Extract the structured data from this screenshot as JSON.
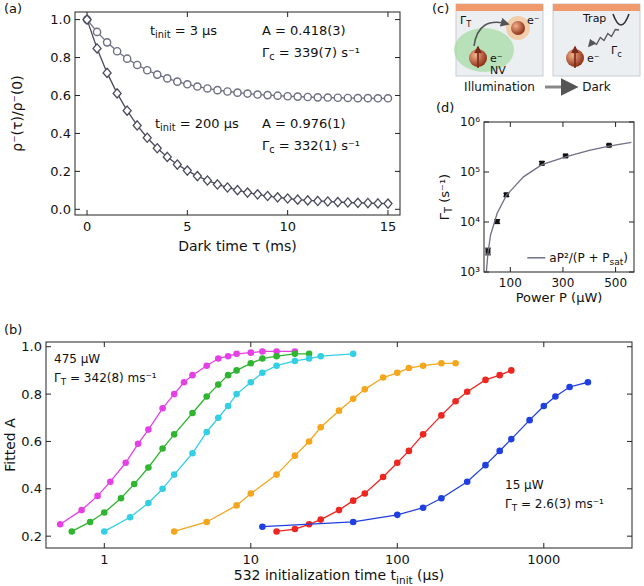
{
  "chart_data": [
    {
      "type": "line",
      "panel_label": "(a)",
      "x_label": "Dark time τ (ms)",
      "y_label": "ρ⁻(τ)/ρ⁻(0)",
      "x": [
        0,
        0.5,
        1,
        1.5,
        2,
        2.5,
        3,
        3.5,
        4,
        4.5,
        5,
        5.5,
        6,
        6.5,
        7,
        7.5,
        8,
        8.5,
        9,
        9.5,
        10,
        10.5,
        11,
        11.5,
        12,
        12.5,
        13,
        13.5,
        14,
        14.5,
        15
      ],
      "series": [
        {
          "color": "#6e6e84",
          "marker": "circle_open",
          "line_style": "solid",
          "values": [
            1.0,
            0.935,
            0.88,
            0.833,
            0.794,
            0.761,
            0.733,
            0.71,
            0.69,
            0.673,
            0.659,
            0.647,
            0.637,
            0.628,
            0.621,
            0.615,
            0.61,
            0.605,
            0.602,
            0.599,
            0.596,
            0.594,
            0.592,
            0.59,
            0.589,
            0.588,
            0.587,
            0.586,
            0.586,
            0.585,
            0.585
          ]
        },
        {
          "color": "#4a4a5e",
          "marker": "diamond_open",
          "line_style": "solid",
          "values": [
            1.0,
            0.848,
            0.719,
            0.611,
            0.52,
            0.442,
            0.377,
            0.322,
            0.276,
            0.236,
            0.204,
            0.175,
            0.152,
            0.131,
            0.115,
            0.101,
            0.088,
            0.079,
            0.07,
            0.063,
            0.057,
            0.051,
            0.047,
            0.044,
            0.041,
            0.038,
            0.036,
            0.034,
            0.033,
            0.031,
            0.03
          ]
        }
      ],
      "xlim": [
        -0.6,
        15.6
      ],
      "ylim": [
        -0.03,
        1.04
      ],
      "xticks": [
        0,
        5,
        10,
        15
      ],
      "yticks": [
        {
          "value": 0,
          "label": "0.0"
        },
        0.2,
        0.4,
        0.6,
        0.8,
        {
          "value": 1,
          "label": "1.0"
        }
      ],
      "annotations": [
        [
          "t",
          {
            "sub": "init"
          },
          " = 3 μs"
        ],
        "A = 0.418(3)",
        [
          "Γ",
          {
            "sub": "c"
          },
          " = 339(7) s⁻¹"
        ],
        [
          "t",
          {
            "sub": "init"
          },
          " = 200 μs"
        ],
        "A = 0.976(1)",
        [
          "Γ",
          {
            "sub": "c"
          },
          " = 332(1) s⁻¹"
        ]
      ]
    },
    {
      "type": "line",
      "panel_label": "(b)",
      "x_label": [
        "532 initialization time t",
        {
          "sub": "init"
        },
        " (μs)"
      ],
      "y_label": "Fitted A",
      "log": "x",
      "series": [
        {
          "color": "#e540e5",
          "marker": "circle",
          "line_style": "solid",
          "x": [
            0.5,
            0.7,
            0.9,
            1.1,
            1.4,
            1.7,
            2,
            2.5,
            3,
            3.5,
            4,
            5,
            6,
            7,
            8,
            10,
            12,
            15,
            20
          ],
          "values": [
            0.25,
            0.31,
            0.37,
            0.43,
            0.51,
            0.59,
            0.65,
            0.74,
            0.8,
            0.85,
            0.88,
            0.92,
            0.95,
            0.96,
            0.97,
            0.975,
            0.98,
            0.98,
            0.98
          ]
        },
        {
          "color": "#2fb52f",
          "marker": "circle",
          "line_style": "solid",
          "x": [
            0.6,
            0.8,
            1,
            1.3,
            1.6,
            2,
            2.5,
            3,
            4,
            5,
            6,
            7,
            8,
            10,
            12,
            15,
            20,
            25
          ],
          "values": [
            0.22,
            0.26,
            0.3,
            0.36,
            0.42,
            0.49,
            0.57,
            0.63,
            0.72,
            0.79,
            0.84,
            0.88,
            0.9,
            0.93,
            0.95,
            0.96,
            0.97,
            0.97
          ]
        },
        {
          "color": "#33cfe4",
          "marker": "circle",
          "line_style": "solid",
          "x": [
            1,
            1.5,
            2,
            2.5,
            3,
            4,
            5,
            6,
            7,
            8,
            10,
            12,
            15,
            20,
            25,
            30,
            50
          ],
          "values": [
            0.22,
            0.28,
            0.34,
            0.4,
            0.46,
            0.55,
            0.64,
            0.7,
            0.75,
            0.8,
            0.85,
            0.89,
            0.92,
            0.94,
            0.95,
            0.96,
            0.97
          ]
        },
        {
          "color": "#f4a61c",
          "marker": "circle",
          "line_style": "solid",
          "x": [
            3,
            5,
            8,
            10,
            15,
            20,
            25,
            30,
            40,
            50,
            60,
            80,
            100,
            120,
            150,
            200,
            250
          ],
          "values": [
            0.22,
            0.26,
            0.33,
            0.38,
            0.46,
            0.54,
            0.6,
            0.66,
            0.73,
            0.78,
            0.82,
            0.87,
            0.89,
            0.91,
            0.92,
            0.93,
            0.93
          ]
        },
        {
          "color": "#ee2620",
          "marker": "circle",
          "line_style": "solid",
          "x": [
            15,
            20,
            25,
            30,
            40,
            50,
            60,
            80,
            100,
            120,
            150,
            200,
            250,
            300,
            400,
            500,
            600
          ],
          "values": [
            0.22,
            0.23,
            0.25,
            0.27,
            0.31,
            0.35,
            0.38,
            0.45,
            0.51,
            0.56,
            0.63,
            0.71,
            0.77,
            0.81,
            0.86,
            0.88,
            0.9
          ]
        },
        {
          "color": "#1f3fe0",
          "marker": "circle",
          "line_style": "solid",
          "x": [
            12,
            50,
            100,
            150,
            200,
            300,
            400,
            500,
            600,
            800,
            1000,
            1200,
            1500,
            2000
          ],
          "values": [
            0.24,
            0.26,
            0.29,
            0.32,
            0.36,
            0.43,
            0.5,
            0.56,
            0.61,
            0.69,
            0.75,
            0.79,
            0.83,
            0.85
          ]
        }
      ],
      "xlim": [
        0.4,
        4000
      ],
      "ylim": [
        0.15,
        1.02
      ],
      "xticks": [
        1,
        10,
        100,
        1000
      ],
      "yticks": [
        0.2,
        0.4,
        0.6,
        0.8,
        {
          "value": 1,
          "label": "1.0"
        }
      ],
      "annotations": [
        "475 μW",
        [
          "Γ",
          {
            "sub": "T"
          },
          " = 342(8) ms⁻¹"
        ],
        "15 μW",
        [
          "Γ",
          {
            "sub": "T"
          },
          " = 2.6(3) ms⁻¹"
        ]
      ]
    },
    {
      "type": "scatter",
      "panel_label": "(d)",
      "x_label": "Power P (μW)",
      "y_label": [
        "Γ",
        {
          "sub": "T"
        },
        " (s⁻¹)"
      ],
      "log": "y",
      "legend": "lower right",
      "series": [
        {
          "color": "#111111",
          "marker": "square",
          "x": [
            15,
            50,
            85,
            220,
            310,
            475
          ],
          "values": [
            2600,
            10200,
            35000,
            150000,
            210000,
            342000
          ],
          "errors": [
            400,
            900,
            2500,
            12000,
            10000,
            15000
          ]
        },
        {
          "name": [
            "aP²/(P + P",
            {
              "sub": "sat"
            },
            ")"
          ],
          "type": "line",
          "color": "#6f6f86",
          "line_style": "solid",
          "x": [
            9,
            15,
            25,
            50,
            85,
            150,
            220,
            310,
            400,
            475,
            560
          ],
          "values": [
            1000,
            2400,
            5500,
            15000,
            34000,
            80000,
            140000,
            200000,
            270000,
            330000,
            390000
          ]
        }
      ],
      "xlim": [
        0,
        570
      ],
      "ylim": [
        1000,
        1000000
      ],
      "xticks": [
        100,
        300,
        500
      ],
      "yticks": [
        {
          "value": 1000,
          "label": "10³"
        },
        {
          "value": 10000,
          "label": "10⁴"
        },
        {
          "value": 100000,
          "label": "10⁵"
        },
        {
          "value": 1000000,
          "label": "10⁶"
        }
      ]
    }
  ],
  "diagram": {
    "panel_label": "(c)",
    "scenes": [
      {
        "caption": "Illumination",
        "rate": [
          "Γ",
          {
            "sub": "T"
          }
        ],
        "site": "NV",
        "electrons": [
          "e⁻",
          "e⁻"
        ]
      },
      {
        "caption": "Dark",
        "trap": "Trap",
        "rate": [
          "Γ",
          {
            "sub": "c"
          }
        ],
        "electrons": [
          "e⁻"
        ]
      }
    ]
  }
}
